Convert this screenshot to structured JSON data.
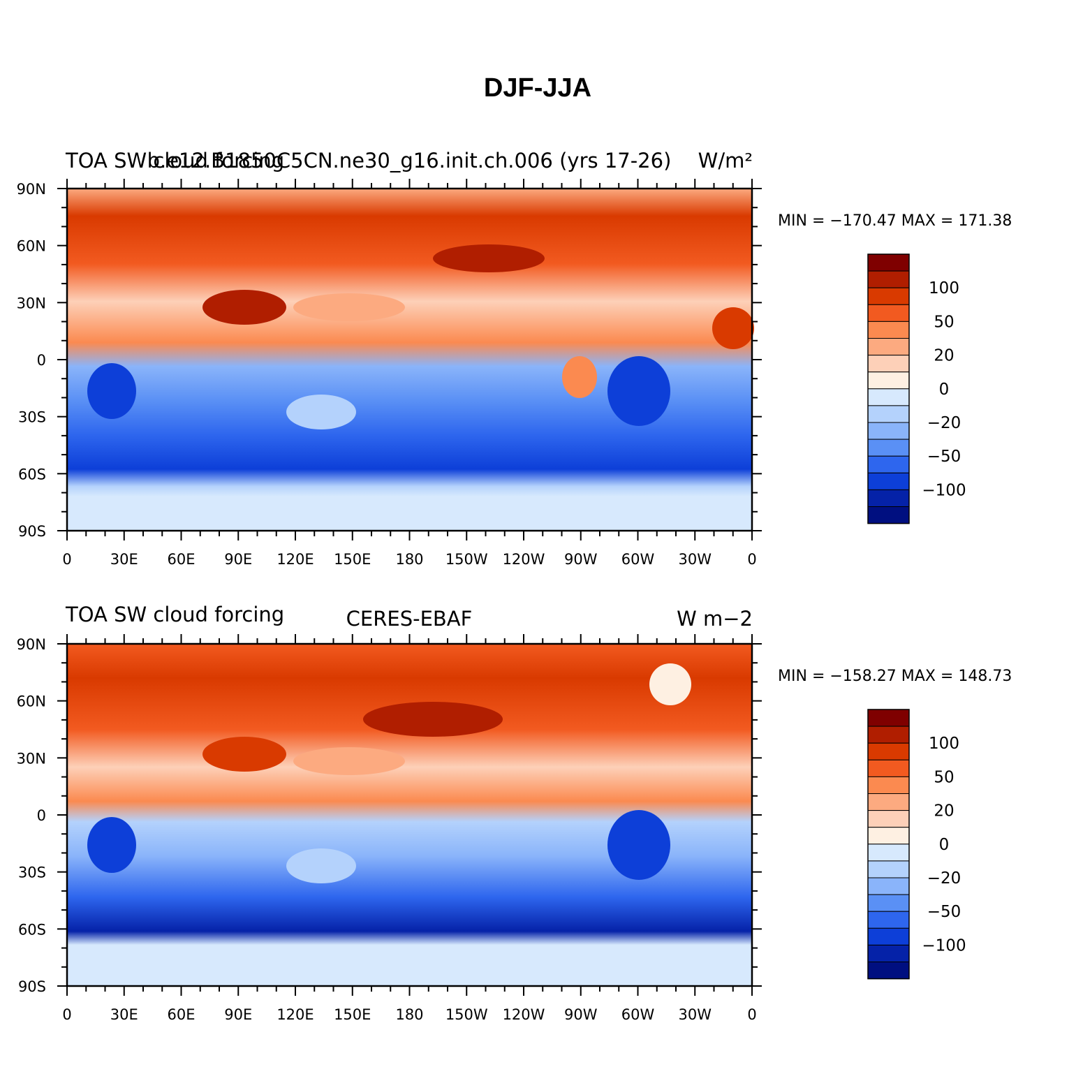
{
  "figure": {
    "title": "DJF-JJA"
  },
  "chart_data": [
    {
      "type": "heatmap",
      "left_title": "TOA SW cloud forcing",
      "center_title": "b.e12.B1850C5CN.ne30_g16.init.ch.006 (yrs 17-26)",
      "units_title": "W/m²",
      "stats": {
        "min_label": "MIN",
        "min": "−170.47",
        "max_label": "MAX",
        "max": "171.38"
      },
      "x_ticks": [
        "0",
        "30E",
        "60E",
        "90E",
        "120E",
        "150E",
        "180",
        "150W",
        "120W",
        "90W",
        "60W",
        "30W",
        "0"
      ],
      "y_ticks": [
        "90N",
        "60N",
        "30N",
        "0",
        "30S",
        "60S",
        "90S"
      ],
      "xlim": [
        0,
        360
      ],
      "ylim": [
        -90,
        90
      ]
    },
    {
      "type": "heatmap",
      "left_title": "TOA SW cloud forcing",
      "center_title": "CERES-EBAF",
      "units_title": "W m−2",
      "stats": {
        "min_label": "MIN",
        "min": "−158.27",
        "max_label": "MAX",
        "max": "148.73"
      },
      "x_ticks": [
        "0",
        "30E",
        "60E",
        "90E",
        "120E",
        "150E",
        "180",
        "150W",
        "120W",
        "90W",
        "60W",
        "30W",
        "0"
      ],
      "y_ticks": [
        "90N",
        "60N",
        "30N",
        "0",
        "30S",
        "60S",
        "90S"
      ],
      "xlim": [
        0,
        360
      ],
      "ylim": [
        -90,
        90
      ]
    }
  ],
  "colorbar": {
    "colors": [
      "#7f0000",
      "#b01e00",
      "#d93a00",
      "#f25a20",
      "#fb8a50",
      "#fcaa80",
      "#fdd0b8",
      "#fef0e2",
      "#d7e9fd",
      "#b4d2fc",
      "#8ab4fa",
      "#5a90f5",
      "#2e66ee",
      "#0d3fd8",
      "#0522a8",
      "#000f80"
    ],
    "labels": [
      "100",
      "50",
      "20",
      "0",
      "−20",
      "−50",
      "−100"
    ]
  }
}
